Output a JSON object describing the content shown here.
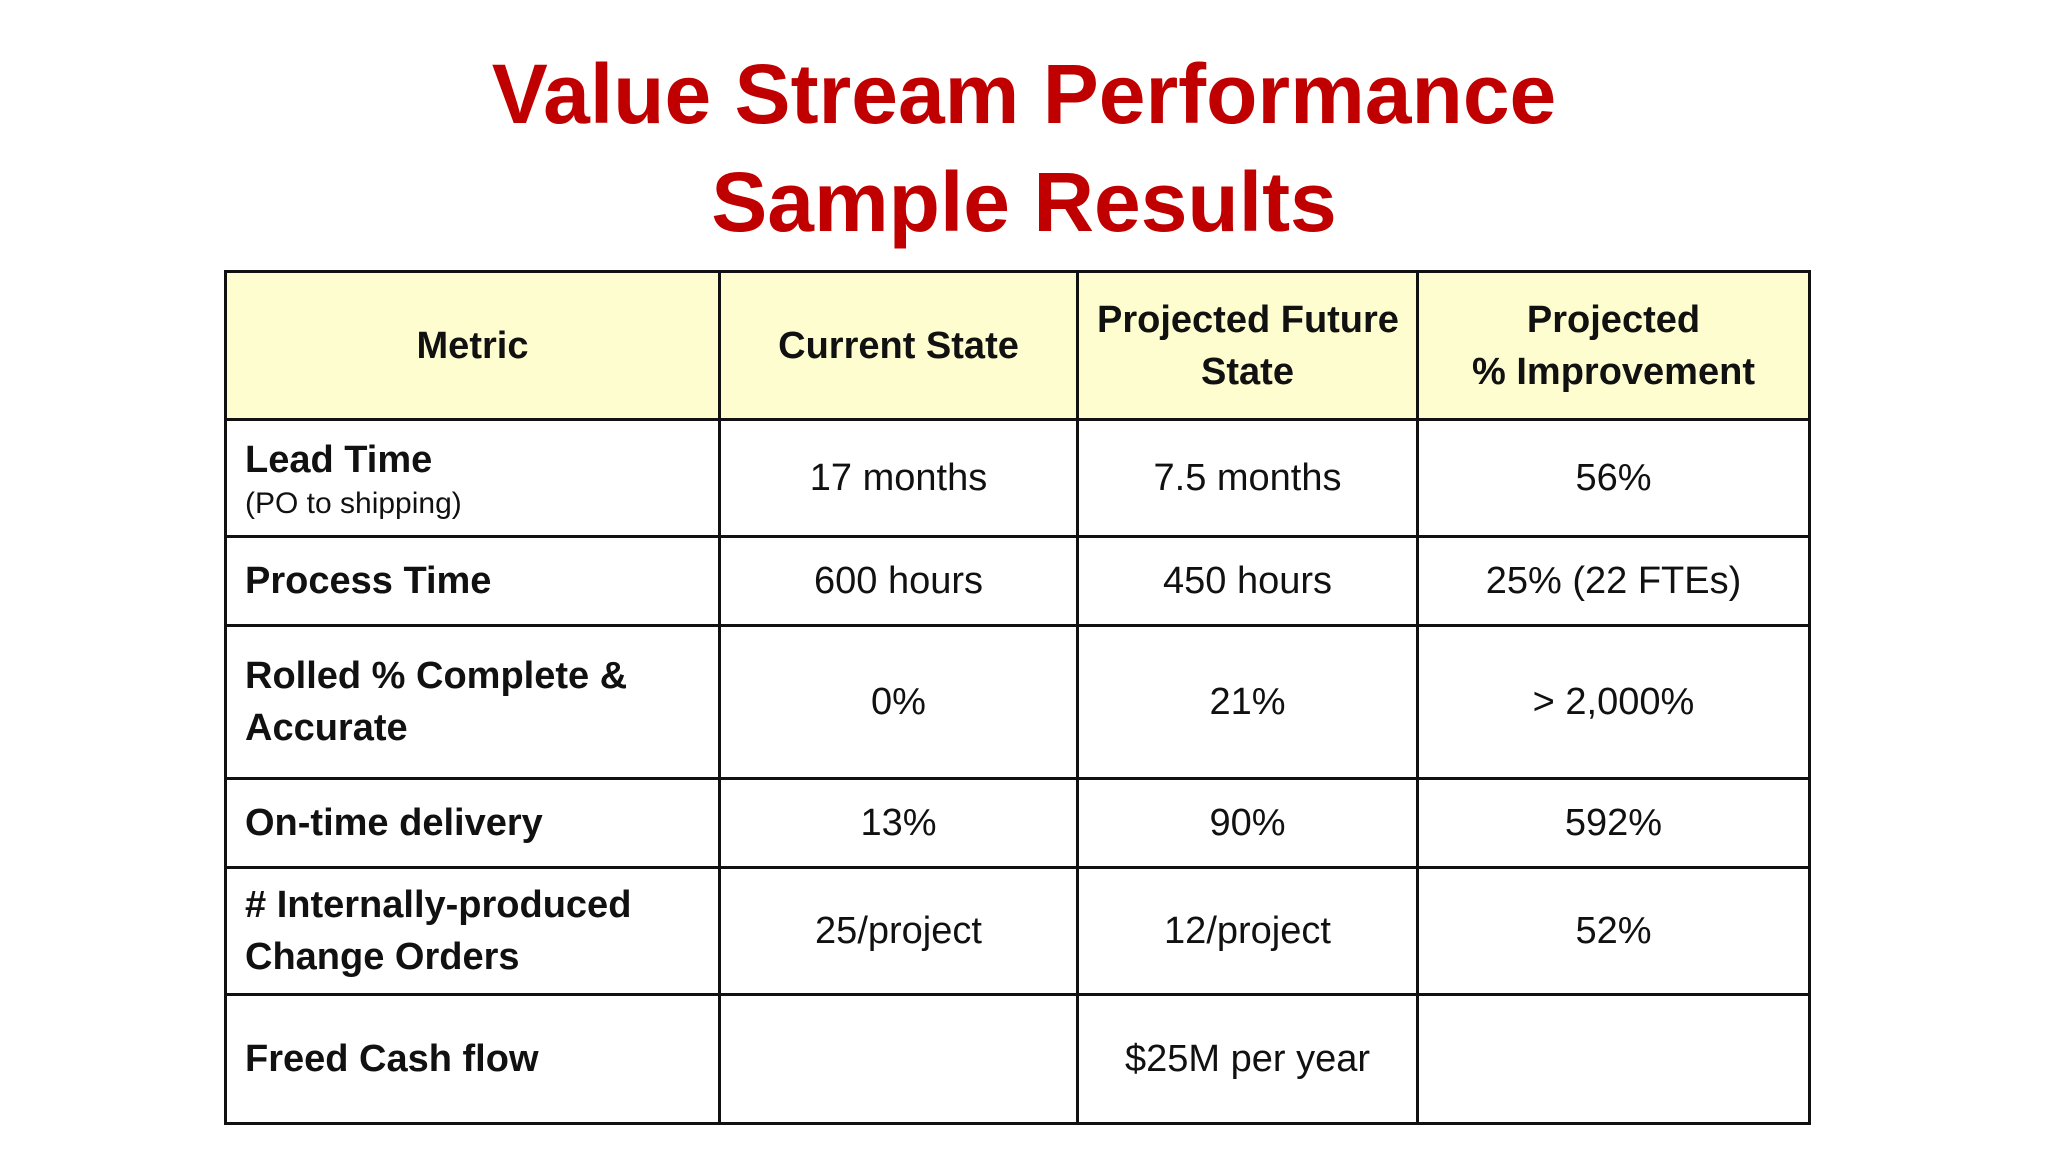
{
  "title": {
    "line1": "Value Stream Performance",
    "line2": "Sample Results"
  },
  "colors": {
    "title": "#c00000",
    "header_bg": "#fdfdcf",
    "border": "#111111"
  },
  "table": {
    "headers": {
      "metric": "Metric",
      "current": "Current State",
      "future_line1": "Projected Future",
      "future_line2": "State",
      "improvement_line1": "Projected",
      "improvement_line2": "% Improvement"
    },
    "rows": [
      {
        "metric_line1": "Lead Time",
        "metric_note": "(PO to shipping)",
        "current": "17 months",
        "future": "7.5 months",
        "improvement": "56%"
      },
      {
        "metric_line1": "Process Time",
        "current": "600 hours",
        "future": "450 hours",
        "improvement": "25% (22 FTEs)"
      },
      {
        "metric_line1": "Rolled % Complete &",
        "metric_line2": "Accurate",
        "current": "0%",
        "future": "21%",
        "improvement": "> 2,000%"
      },
      {
        "metric_line1": "On-time delivery",
        "current": "13%",
        "future": "90%",
        "improvement": "592%"
      },
      {
        "metric_line1": "# Internally-produced",
        "metric_line2": "Change Orders",
        "current": "25/project",
        "future": "12/project",
        "improvement": "52%"
      },
      {
        "metric_line1": "Freed Cash flow",
        "current": "",
        "future": "$25M per year",
        "improvement": ""
      }
    ]
  }
}
